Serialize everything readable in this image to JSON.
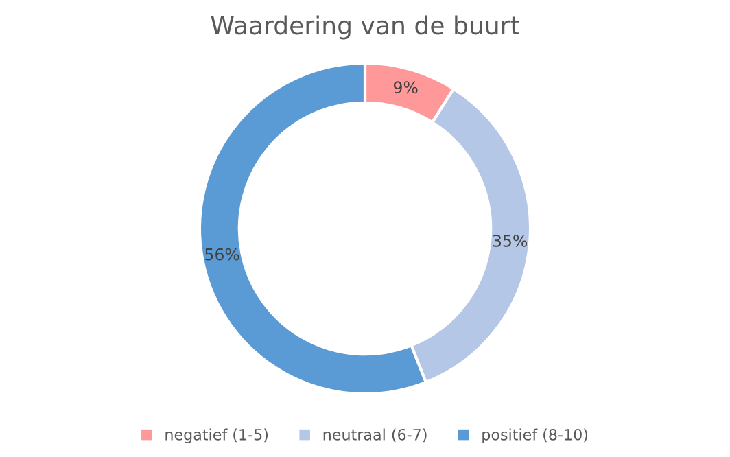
{
  "chart_data": {
    "type": "donut",
    "title": "Waardering van de buurt",
    "categories": [
      "negatief (1-5)",
      "neutraal (6-7)",
      "positief (8-10)"
    ],
    "values": [
      9,
      35,
      56
    ],
    "colors": [
      "#ff9999",
      "#b4c7e7",
      "#5b9bd5"
    ],
    "value_labels": [
      "9%",
      "35%",
      "56%"
    ],
    "legend": "bottom"
  }
}
